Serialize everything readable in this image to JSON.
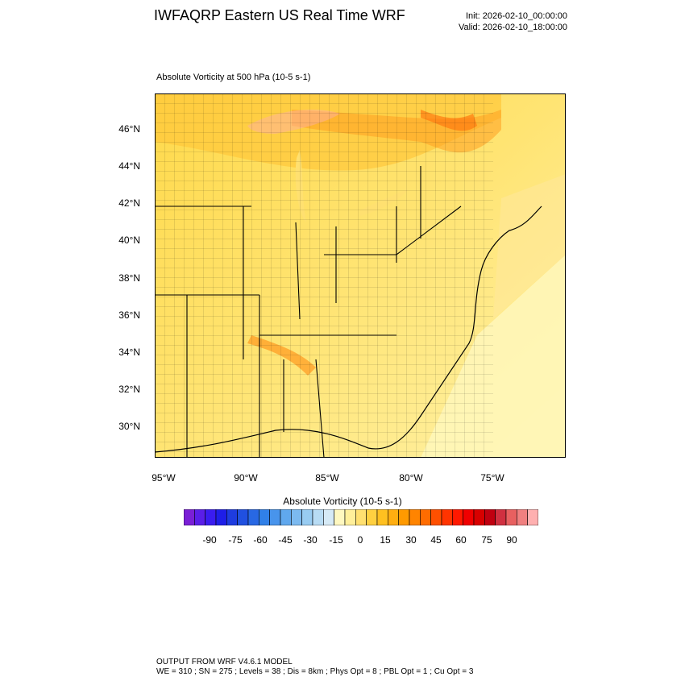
{
  "header": {
    "title": "IWFAQRP Eastern US Real Time WRF",
    "init": "Init: 2026-02-10_00:00:00",
    "valid": "Valid: 2026-02-10_18:00:00"
  },
  "plot": {
    "variable_title": "Absolute Vorticity at 500 hPa   (10-5 s-1)",
    "lat_labels": [
      "46°N",
      "44°N",
      "42°N",
      "40°N",
      "38°N",
      "36°N",
      "34°N",
      "32°N",
      "30°N"
    ],
    "lon_labels": [
      "95°W",
      "90°W",
      "85°W",
      "80°W",
      "75°W"
    ]
  },
  "colorbar": {
    "title": "Absolute Vorticity  (10-5 s-1)",
    "labels": [
      "-90",
      "-75",
      "-60",
      "-45",
      "-30",
      "-15",
      "0",
      "15",
      "30",
      "45",
      "60",
      "75",
      "90"
    ],
    "colors": [
      "#7a1fd6",
      "#5a1ee8",
      "#3a1cf0",
      "#1e1ee8",
      "#1e3ce0",
      "#2050e0",
      "#2868e4",
      "#3080e8",
      "#4894ec",
      "#60a8ee",
      "#7cbaf0",
      "#98ccf2",
      "#b8dcf4",
      "#d6eaf6",
      "#fff8c0",
      "#ffef9a",
      "#ffe070",
      "#ffd040",
      "#ffc020",
      "#ffae10",
      "#ff9a00",
      "#ff8400",
      "#ff6c00",
      "#ff5000",
      "#ff3400",
      "#ff1800",
      "#f00000",
      "#d80000",
      "#c00010",
      "#d03040",
      "#e86060",
      "#f08080",
      "#ffb0b0"
    ],
    "background_color": "#ffe066",
    "border_color": "#000000"
  },
  "footer": {
    "line1": "OUTPUT FROM WRF V4.6.1 MODEL",
    "line2": "WE = 310 ; SN = 275 ; Levels = 38 ; Dis = 8km ; Phys Opt = 8 ; PBL Opt = 1 ; Cu Opt = 3"
  }
}
